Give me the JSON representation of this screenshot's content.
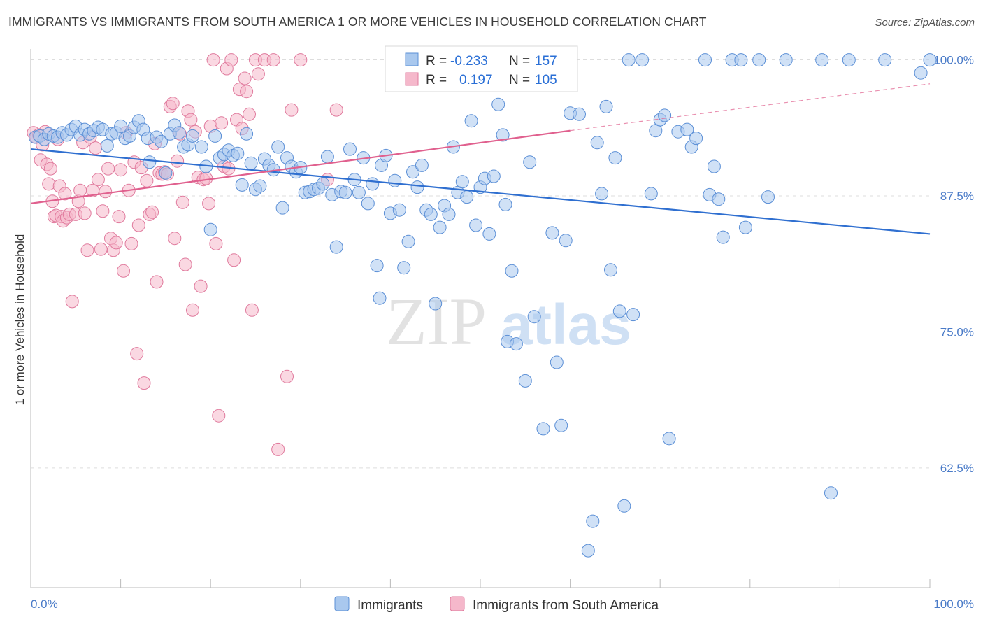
{
  "title": "IMMIGRANTS VS IMMIGRANTS FROM SOUTH AMERICA 1 OR MORE VEHICLES IN HOUSEHOLD CORRELATION CHART",
  "source": "Source: ZipAtlas.com",
  "watermark": {
    "zip": "ZIP",
    "atlas": "atlas"
  },
  "colors": {
    "blue_fill": "#a9c8ee",
    "blue_stroke": "#5b8fd6",
    "blue_line": "#2f6fd0",
    "pink_fill": "#f5b8cb",
    "pink_stroke": "#e07a9d",
    "pink_line": "#e0608e",
    "grid": "#dddddd",
    "tick_text": "#4a7bc8"
  },
  "legend": {
    "r_label": "R =",
    "n_label": "N =",
    "entries": [
      {
        "r": "-0.233",
        "n": "157"
      },
      {
        "r": "0.197",
        "n": "105"
      }
    ]
  },
  "chart_data": {
    "type": "scatter",
    "xlabel": "",
    "ylabel": "1 or more Vehicles in Household",
    "x_tick_labels": [
      "0.0%",
      "100.0%"
    ],
    "y_tick_labels": [
      "100.0%",
      "87.5%",
      "75.0%",
      "62.5%"
    ],
    "y_ticks": [
      100.0,
      87.5,
      75.0,
      62.5
    ],
    "xlim": [
      0,
      100
    ],
    "ylim": [
      51.5,
      101.0
    ],
    "grid": true,
    "legend_position": "top-center",
    "series": [
      {
        "name": "Immigrants",
        "trend": {
          "x": [
            0,
            100
          ],
          "y": [
            91.8,
            84.0
          ]
        },
        "points": [
          [
            0.5,
            92.9
          ],
          [
            1,
            93.0
          ],
          [
            1.5,
            92.7
          ],
          [
            2,
            93.2
          ],
          [
            2.5,
            93.0
          ],
          [
            3,
            92.9
          ],
          [
            3.5,
            93.3
          ],
          [
            4,
            93.1
          ],
          [
            4.5,
            93.6
          ],
          [
            5,
            93.9
          ],
          [
            5.5,
            93.1
          ],
          [
            6,
            93.6
          ],
          [
            6.5,
            93.2
          ],
          [
            7,
            93.5
          ],
          [
            7.5,
            93.8
          ],
          [
            8,
            93.6
          ],
          [
            8.5,
            92.1
          ],
          [
            9,
            93.2
          ],
          [
            9.5,
            93.3
          ],
          [
            10,
            93.9
          ],
          [
            10.5,
            92.8
          ],
          [
            11,
            93.0
          ],
          [
            11.5,
            93.8
          ],
          [
            12,
            94.4
          ],
          [
            12.5,
            93.6
          ],
          [
            13,
            92.8
          ],
          [
            13.2,
            90.6
          ],
          [
            14,
            92.9
          ],
          [
            14.5,
            92.5
          ],
          [
            15,
            89.6
          ],
          [
            15.5,
            93.2
          ],
          [
            16,
            94.0
          ],
          [
            16.5,
            93.3
          ],
          [
            17,
            92.0
          ],
          [
            17.5,
            92.2
          ],
          [
            18,
            93.0
          ],
          [
            19,
            92.0
          ],
          [
            19.5,
            90.2
          ],
          [
            20,
            84.4
          ],
          [
            20.5,
            93.0
          ],
          [
            21,
            91.0
          ],
          [
            21.5,
            91.3
          ],
          [
            22,
            91.7
          ],
          [
            22.5,
            91.2
          ],
          [
            23,
            91.4
          ],
          [
            23.5,
            88.5
          ],
          [
            24,
            93.2
          ],
          [
            24.5,
            90.5
          ],
          [
            25,
            88.1
          ],
          [
            25.5,
            88.4
          ],
          [
            26,
            90.9
          ],
          [
            26.5,
            90.3
          ],
          [
            27,
            89.9
          ],
          [
            27.5,
            92.0
          ],
          [
            28,
            86.4
          ],
          [
            28.5,
            91.0
          ],
          [
            29,
            90.2
          ],
          [
            29.5,
            89.7
          ],
          [
            30,
            90.1
          ],
          [
            30.5,
            87.8
          ],
          [
            31,
            87.9
          ],
          [
            31.5,
            88.1
          ],
          [
            32,
            88.2
          ],
          [
            32.5,
            88.6
          ],
          [
            33,
            91.1
          ],
          [
            33.5,
            87.6
          ],
          [
            34,
            82.8
          ],
          [
            34.5,
            87.9
          ],
          [
            35,
            87.8
          ],
          [
            35.5,
            91.8
          ],
          [
            36,
            89.0
          ],
          [
            36.5,
            87.8
          ],
          [
            37,
            91.0
          ],
          [
            37.5,
            86.8
          ],
          [
            38,
            88.6
          ],
          [
            38.5,
            81.1
          ],
          [
            38.8,
            78.1
          ],
          [
            39,
            90.3
          ],
          [
            39.5,
            91.2
          ],
          [
            40,
            85.9
          ],
          [
            40.5,
            88.9
          ],
          [
            41,
            86.2
          ],
          [
            41.5,
            80.9
          ],
          [
            42,
            83.3
          ],
          [
            42.5,
            89.7
          ],
          [
            43,
            88.3
          ],
          [
            43.5,
            90.3
          ],
          [
            44,
            86.2
          ],
          [
            44.5,
            85.8
          ],
          [
            45,
            77.6
          ],
          [
            45.5,
            84.6
          ],
          [
            46,
            86.6
          ],
          [
            46.5,
            85.8
          ],
          [
            47,
            92.0
          ],
          [
            47.5,
            87.8
          ],
          [
            48,
            88.8
          ],
          [
            48.5,
            87.4
          ],
          [
            49,
            94.4
          ],
          [
            49.5,
            84.8
          ],
          [
            50,
            88.3
          ],
          [
            50.5,
            89.1
          ],
          [
            51,
            84.0
          ],
          [
            51.5,
            89.3
          ],
          [
            52,
            95.9
          ],
          [
            52.5,
            93.1
          ],
          [
            52.8,
            86.7
          ],
          [
            53,
            74.1
          ],
          [
            53.5,
            80.6
          ],
          [
            54,
            73.9
          ],
          [
            55,
            70.5
          ],
          [
            55.5,
            90.6
          ],
          [
            56,
            76.4
          ],
          [
            57,
            66.1
          ],
          [
            58,
            84.1
          ],
          [
            58.5,
            72.2
          ],
          [
            59,
            66.4
          ],
          [
            59.5,
            83.4
          ],
          [
            60,
            95.1
          ],
          [
            61,
            95.0
          ],
          [
            62,
            54.9
          ],
          [
            62.5,
            57.6
          ],
          [
            63,
            92.4
          ],
          [
            63.5,
            87.7
          ],
          [
            64,
            95.7
          ],
          [
            64.5,
            80.7
          ],
          [
            65,
            91.0
          ],
          [
            65.5,
            76.9
          ],
          [
            66,
            59.0
          ],
          [
            66.5,
            100.0
          ],
          [
            67,
            76.6
          ],
          [
            68,
            100.0
          ],
          [
            69,
            87.7
          ],
          [
            69.5,
            93.5
          ],
          [
            70,
            94.5
          ],
          [
            70.5,
            94.9
          ],
          [
            71,
            65.2
          ],
          [
            72,
            93.4
          ],
          [
            73,
            93.6
          ],
          [
            73.5,
            92.0
          ],
          [
            74,
            92.8
          ],
          [
            75,
            100.0
          ],
          [
            75.5,
            87.6
          ],
          [
            76,
            90.2
          ],
          [
            76.5,
            87.2
          ],
          [
            77,
            83.7
          ],
          [
            78,
            100.0
          ],
          [
            79,
            100.0
          ],
          [
            79.5,
            84.6
          ],
          [
            81,
            100.0
          ],
          [
            82,
            87.4
          ],
          [
            84,
            100.0
          ],
          [
            88,
            100.0
          ],
          [
            89,
            60.2
          ],
          [
            91,
            100.0
          ],
          [
            95,
            100.0
          ],
          [
            99,
            98.8
          ],
          [
            100,
            100.0
          ]
        ]
      },
      {
        "name": "Immigrants from South America",
        "trend": {
          "x": [
            0,
            60
          ],
          "y": [
            86.8,
            93.5
          ],
          "dashed_to": {
            "x": 100,
            "y": 97.8
          }
        },
        "points": [
          [
            0.3,
            93.3
          ],
          [
            0.6,
            92.9
          ],
          [
            0.9,
            93.1
          ],
          [
            1.1,
            90.8
          ],
          [
            1.3,
            92.2
          ],
          [
            1.6,
            93.4
          ],
          [
            1.8,
            90.4
          ],
          [
            2,
            88.6
          ],
          [
            2.2,
            90.0
          ],
          [
            2.4,
            87.0
          ],
          [
            2.6,
            85.6
          ],
          [
            2.8,
            85.7
          ],
          [
            3,
            92.7
          ],
          [
            3.2,
            88.4
          ],
          [
            3.4,
            85.6
          ],
          [
            3.6,
            85.2
          ],
          [
            3.8,
            87.7
          ],
          [
            4,
            85.5
          ],
          [
            4.3,
            85.8
          ],
          [
            4.6,
            77.8
          ],
          [
            5,
            85.8
          ],
          [
            5.3,
            87.0
          ],
          [
            5.5,
            88.0
          ],
          [
            5.8,
            92.4
          ],
          [
            6,
            85.9
          ],
          [
            6.3,
            82.5
          ],
          [
            6.6,
            92.9
          ],
          [
            6.9,
            88.0
          ],
          [
            7.2,
            91.9
          ],
          [
            7.5,
            89.0
          ],
          [
            7.8,
            82.6
          ],
          [
            8,
            86.1
          ],
          [
            8.3,
            87.9
          ],
          [
            8.6,
            90.0
          ],
          [
            8.9,
            83.6
          ],
          [
            9.2,
            82.5
          ],
          [
            9.5,
            83.2
          ],
          [
            9.8,
            85.6
          ],
          [
            10,
            89.9
          ],
          [
            10.3,
            80.6
          ],
          [
            10.6,
            93.3
          ],
          [
            10.9,
            88.0
          ],
          [
            11.2,
            83.1
          ],
          [
            11.5,
            90.6
          ],
          [
            11.8,
            73.0
          ],
          [
            12,
            84.8
          ],
          [
            12.3,
            90.1
          ],
          [
            12.6,
            70.3
          ],
          [
            12.9,
            88.9
          ],
          [
            13.2,
            85.8
          ],
          [
            13.5,
            86.0
          ],
          [
            13.8,
            92.3
          ],
          [
            14,
            79.6
          ],
          [
            14.3,
            89.6
          ],
          [
            14.6,
            89.5
          ],
          [
            14.9,
            89.7
          ],
          [
            15.2,
            89.5
          ],
          [
            15.5,
            95.7
          ],
          [
            15.8,
            96.0
          ],
          [
            16,
            83.6
          ],
          [
            16.3,
            90.7
          ],
          [
            16.6,
            93.2
          ],
          [
            16.9,
            86.9
          ],
          [
            17.2,
            81.2
          ],
          [
            17.5,
            95.3
          ],
          [
            17.8,
            94.5
          ],
          [
            18,
            77.0
          ],
          [
            18.3,
            93.4
          ],
          [
            18.6,
            89.2
          ],
          [
            18.9,
            79.2
          ],
          [
            19.2,
            89.0
          ],
          [
            19.5,
            89.1
          ],
          [
            19.8,
            86.8
          ],
          [
            20,
            93.9
          ],
          [
            20.3,
            100.0
          ],
          [
            20.6,
            83.1
          ],
          [
            20.9,
            67.3
          ],
          [
            21.2,
            94.2
          ],
          [
            21.5,
            90.2
          ],
          [
            21.8,
            99.2
          ],
          [
            22,
            90.0
          ],
          [
            22.3,
            100.0
          ],
          [
            22.6,
            81.6
          ],
          [
            22.9,
            94.5
          ],
          [
            23.2,
            97.3
          ],
          [
            23.5,
            93.7
          ],
          [
            23.8,
            98.3
          ],
          [
            24,
            97.1
          ],
          [
            24.3,
            95.0
          ],
          [
            24.6,
            77.0
          ],
          [
            25,
            100.0
          ],
          [
            25.3,
            98.7
          ],
          [
            26,
            100.0
          ],
          [
            27,
            100.0
          ],
          [
            27.5,
            64.2
          ],
          [
            28.5,
            70.9
          ],
          [
            29,
            95.4
          ],
          [
            30,
            100.0
          ],
          [
            33,
            89.0
          ],
          [
            34,
            95.4
          ]
        ]
      }
    ]
  },
  "bottom_legend": [
    "Immigrants",
    "Immigrants from South America"
  ]
}
